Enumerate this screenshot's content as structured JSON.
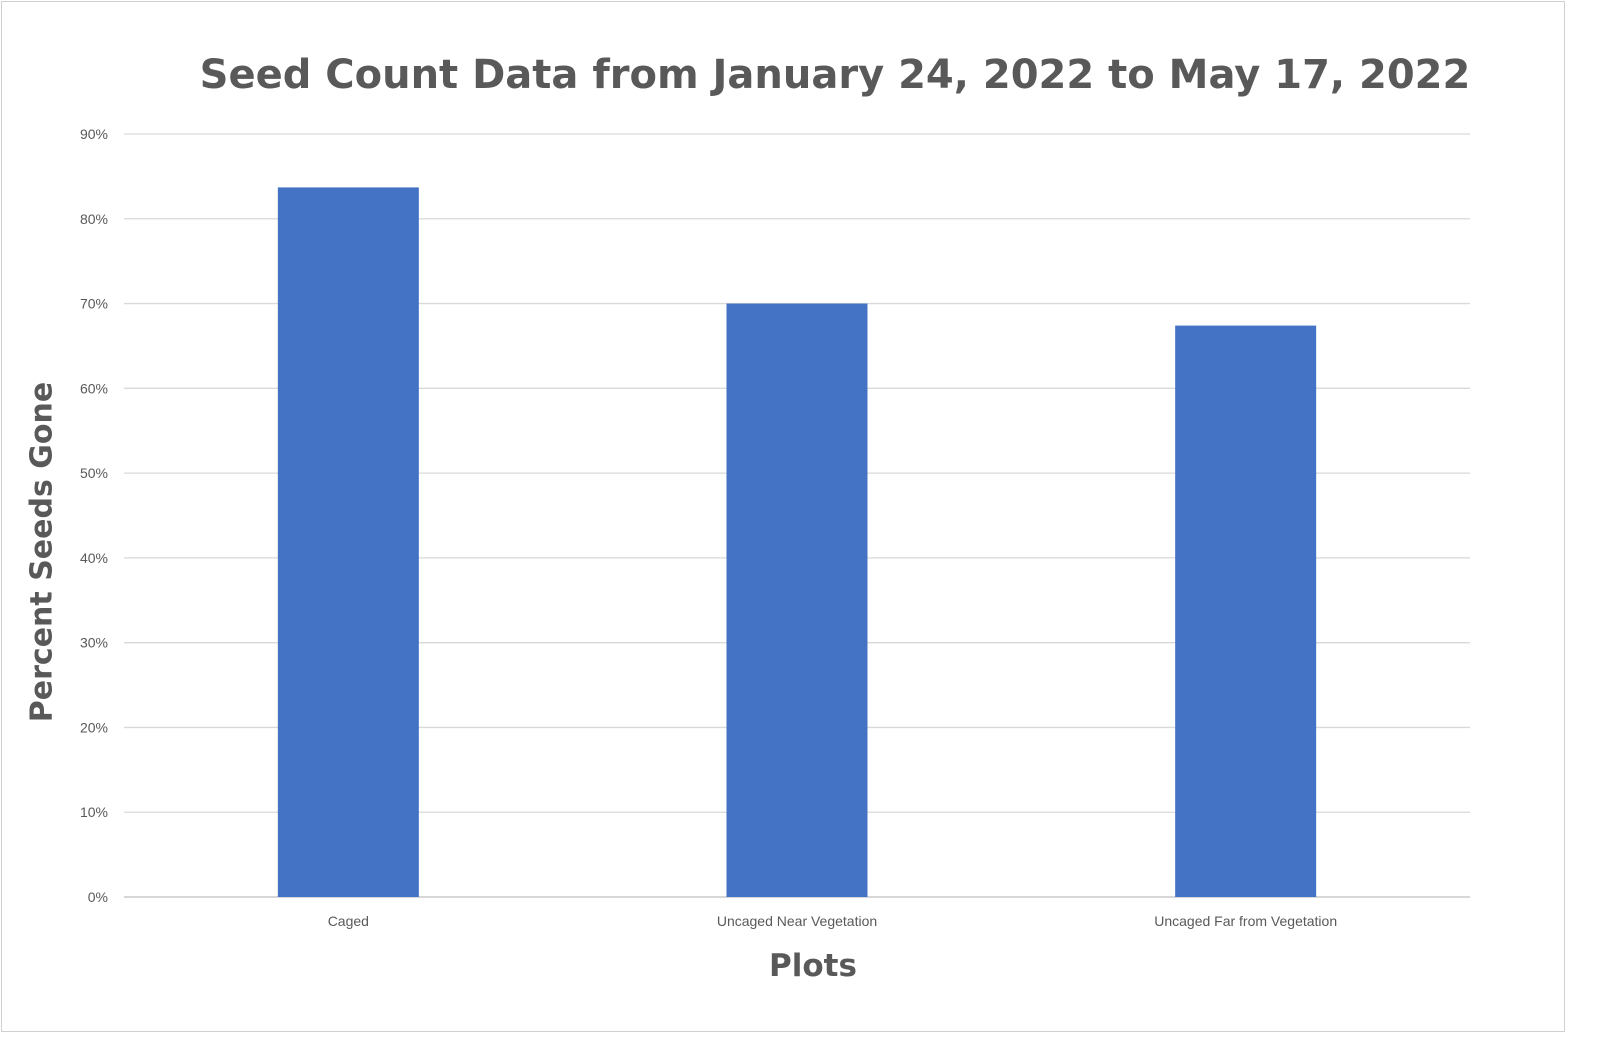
{
  "chart_data": {
    "type": "bar",
    "title": "Seed Count Data from January 24, 2022 to May 17, 2022",
    "xlabel": "Plots",
    "ylabel": "Percent Seeds Gone",
    "categories": [
      "Caged",
      "Uncaged Near Vegetation",
      "Uncaged Far from Vegetation"
    ],
    "values": [
      83.7,
      70.0,
      67.4
    ],
    "ylim": [
      0,
      90
    ],
    "y_ticks": [
      0,
      10,
      20,
      30,
      40,
      50,
      60,
      70,
      80,
      90
    ],
    "y_tick_format": "%",
    "grid": true,
    "legend": "none",
    "bar_color": "#4472C4"
  }
}
